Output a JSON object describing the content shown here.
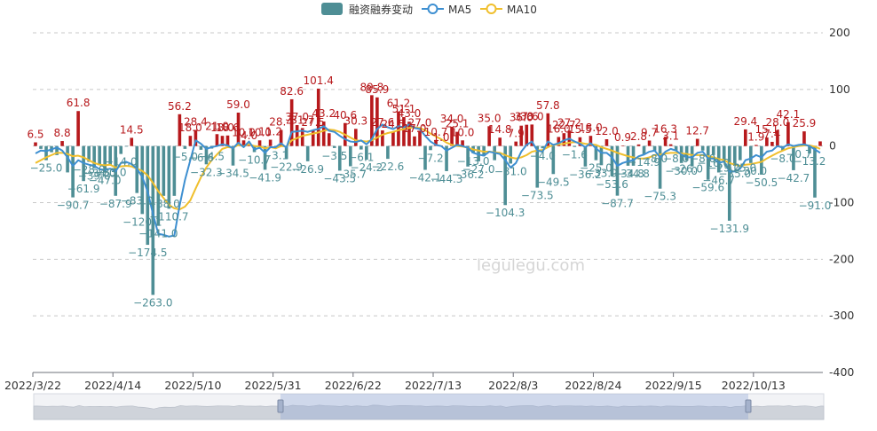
{
  "chart_data": {
    "type": "bar",
    "legend": [
      {
        "key": "bar",
        "label": "融资融券变动",
        "color": "#4e8e95"
      },
      {
        "key": "ma5",
        "label": "MA5",
        "color": "#3d8fd1"
      },
      {
        "key": "ma10",
        "label": "MA10",
        "color": "#f0bf2d"
      }
    ],
    "watermark": "legulegu.com",
    "y_axis": {
      "min": -400,
      "max": 200,
      "ticks": [
        200,
        100,
        0,
        -100,
        -200,
        -300,
        -400
      ],
      "position": "right"
    },
    "x_tick_labels": [
      "2022/3/22",
      "2022/4/14",
      "2022/5/10",
      "2022/5/31",
      "2022/6/22",
      "2022/7/13",
      "2022/8/3",
      "2022/8/24",
      "2022/9/15",
      "2022/10/13"
    ],
    "x_tick_indices": [
      0,
      15,
      30,
      45,
      60,
      75,
      90,
      105,
      120,
      135
    ],
    "positive_color": "#b7191c",
    "negative_color": "#4e8e95",
    "values": [
      6.5,
      -5.0,
      -25.0,
      -11.0,
      -16.0,
      8.8,
      -46.6,
      -90.7,
      61.8,
      -61.9,
      -28.0,
      -39.0,
      -34.0,
      -47.0,
      -33.0,
      -87.9,
      -14.0,
      -1.0,
      14.5,
      -83.0,
      -120.1,
      -174.5,
      -263.0,
      -141.0,
      -88.0,
      -110.7,
      -88.0,
      56.2,
      -5.0,
      18.0,
      28.4,
      -6.6,
      -32.3,
      -4.5,
      21.0,
      18.0,
      18.6,
      -34.5,
      59.0,
      10.0,
      4.0,
      -10.7,
      10.0,
      -41.9,
      11.2,
      -3.1,
      28.4,
      -22.9,
      82.6,
      37.0,
      31.7,
      -26.9,
      27.5,
      101.4,
      43.2,
      22.6,
      -3.5,
      -43.5,
      40.6,
      -35.7,
      30.3,
      -6.1,
      -24.2,
      89.8,
      85.9,
      27.6,
      -22.6,
      24.5,
      61.2,
      51.1,
      43.0,
      17.0,
      27.0,
      -42.1,
      -7.2,
      10.7,
      1.0,
      -44.3,
      34.0,
      25.1,
      10.0,
      -36.2,
      -13.0,
      -27.0,
      -18.0,
      35.0,
      -25.0,
      14.8,
      -104.3,
      -31.0,
      7.9,
      36.0,
      37.6,
      38.0,
      -73.5,
      -4.0,
      57.8,
      -49.5,
      16.0,
      22.7,
      27.2,
      -1.6,
      15.5,
      -36.2,
      18.0,
      -25.0,
      -33.9,
      12.0,
      -53.6,
      -87.7,
      0.9,
      -34.8,
      -34.8,
      2.8,
      -14.9,
      9.7,
      -8.0,
      -75.3,
      16.3,
      3.1,
      -8.0,
      -30.0,
      -26.0,
      -36.0,
      12.7,
      -8.0,
      -59.6,
      -16.0,
      -46.7,
      -25.0,
      -131.9,
      -35.0,
      -25.0,
      29.4,
      -30.0,
      1.9,
      -50.5,
      15.1,
      7.4,
      28.0,
      -8.0,
      42.1,
      -42.7,
      -0.7,
      25.9,
      -13.2,
      -91.0,
      8.2
    ],
    "ma5": [
      -13.0,
      -8.0,
      -9.0,
      -6.0,
      -2.5,
      -8.0,
      -20.0,
      -35.0,
      -25.0,
      -30.0,
      -33.0,
      -35.0,
      -41.0,
      -42.0,
      -40.0,
      -45.0,
      -30.0,
      -28.0,
      -32.0,
      -40.0,
      -55.0,
      -80.0,
      -120.0,
      -155.0,
      -157.0,
      -160.0,
      -158.0,
      -105.0,
      -60.0,
      -25.0,
      10.0,
      4.0,
      -5.0,
      -2.0,
      0.0,
      3.0,
      1.0,
      -4.0,
      6.0,
      -2.0,
      8.0,
      -6.0,
      -3.0,
      -12.0,
      -2.0,
      -2.0,
      5.0,
      -3.0,
      25.0,
      26.0,
      27.0,
      25.0,
      28.0,
      30.0,
      35.0,
      27.0,
      25.0,
      18.0,
      12.0,
      8.0,
      7.0,
      10.0,
      3.0,
      12.0,
      30.0,
      38.0,
      33.0,
      30.0,
      35.0,
      33.0,
      38.0,
      32.0,
      30.0,
      18.0,
      8.0,
      2.0,
      0.0,
      -8.0,
      -3.0,
      2.0,
      0.0,
      -3.0,
      -12.0,
      -15.0,
      -17.0,
      -10.0,
      -12.0,
      -14.0,
      -25.0,
      -38.0,
      -30.0,
      -10.0,
      2.0,
      8.0,
      -8.0,
      -10.0,
      8.0,
      2.0,
      5.0,
      10.0,
      13.0,
      8.0,
      4.0,
      -2.0,
      5.0,
      -4.0,
      -12.0,
      -12.0,
      -20.0,
      -35.0,
      -30.0,
      -27.0,
      -25.0,
      -18.0,
      -15.0,
      -10.0,
      -8.0,
      -20.0,
      -10.0,
      -5.0,
      -8.0,
      -15.0,
      -20.0,
      -20.0,
      -12.0,
      -10.0,
      -22.0,
      -22.0,
      -30.0,
      -27.0,
      -45.0,
      -45.0,
      -40.0,
      -25.0,
      -22.0,
      -16.0,
      -20.0,
      -10.0,
      -8.0,
      0.0,
      -3.0,
      3.0,
      0.0,
      2.0,
      3.0,
      0.0,
      -6.0,
      -12.0
    ],
    "ma10": [
      -30.0,
      -25.0,
      -20.0,
      -16.0,
      -12.0,
      -12.0,
      -14.0,
      -18.0,
      -17.0,
      -20.0,
      -25.0,
      -30.0,
      -33.0,
      -34.0,
      -33.0,
      -38.0,
      -36.0,
      -35.0,
      -36.0,
      -40.0,
      -44.0,
      -52.0,
      -65.0,
      -80.0,
      -92.0,
      -104.0,
      -110.0,
      -112.0,
      -107.0,
      -96.0,
      -75.0,
      -55.0,
      -38.0,
      -25.0,
      -15.0,
      -5.0,
      -2.0,
      -3.0,
      2.0,
      0.0,
      3.0,
      0.0,
      -1.0,
      -4.0,
      -2.0,
      -4.0,
      0.0,
      -1.0,
      10.0,
      14.0,
      18.0,
      20.0,
      22.0,
      24.0,
      27.0,
      29.0,
      28.0,
      25.0,
      20.0,
      15.0,
      10.0,
      9.0,
      8.0,
      10.0,
      15.0,
      20.0,
      23.0,
      25.0,
      28.0,
      30.0,
      32.0,
      33.0,
      32.0,
      28.0,
      22.0,
      17.0,
      12.0,
      6.0,
      2.0,
      0.0,
      -1.0,
      -3.0,
      -6.0,
      -8.0,
      -10.0,
      -10.0,
      -11.0,
      -12.0,
      -16.0,
      -20.0,
      -22.0,
      -20.0,
      -16.0,
      -10.0,
      -8.0,
      -7.0,
      -2.0,
      2.0,
      3.0,
      4.0,
      6.0,
      7.0,
      6.0,
      4.0,
      3.0,
      2.0,
      -2.0,
      -5.0,
      -8.0,
      -12.0,
      -15.0,
      -18.0,
      -20.0,
      -22.0,
      -22.0,
      -20.0,
      -16.0,
      -15.0,
      -13.0,
      -12.0,
      -12.0,
      -13.0,
      -14.0,
      -16.0,
      -16.0,
      -16.0,
      -18.0,
      -20.0,
      -23.0,
      -25.0,
      -30.0,
      -33.0,
      -35.0,
      -33.0,
      -32.0,
      -30.0,
      -28.0,
      -22.0,
      -17.0,
      -12.0,
      -8.0,
      -4.0,
      -2.0,
      0.0,
      1.0,
      1.0,
      -1.0,
      -5.0
    ],
    "label_indices": [
      0,
      2,
      5,
      7,
      8,
      9,
      10,
      11,
      12,
      13,
      14,
      15,
      16,
      18,
      19,
      20,
      21,
      22,
      23,
      24,
      25,
      27,
      28,
      29,
      30,
      31,
      32,
      33,
      34,
      35,
      36,
      37,
      38,
      39,
      40,
      41,
      42,
      43,
      44,
      45,
      46,
      47,
      48,
      49,
      50,
      51,
      52,
      53,
      54,
      56,
      57,
      58,
      59,
      60,
      61,
      62,
      63,
      64,
      65,
      66,
      67,
      68,
      69,
      70,
      71,
      72,
      73,
      74,
      75,
      76,
      77,
      78,
      79,
      80,
      81,
      82,
      83,
      85,
      87,
      88,
      89,
      90,
      91,
      92,
      93,
      94,
      95,
      96,
      97,
      98,
      99,
      100,
      101,
      102,
      103,
      104,
      105,
      106,
      107,
      108,
      109,
      110,
      111,
      112,
      113,
      114,
      115,
      116,
      117,
      118,
      119,
      120,
      121,
      122,
      124,
      125,
      126,
      127,
      128,
      129,
      130,
      131,
      132,
      133,
      134,
      135,
      136,
      137,
      138,
      139,
      140,
      141,
      142,
      143,
      144,
      145,
      146
    ]
  }
}
